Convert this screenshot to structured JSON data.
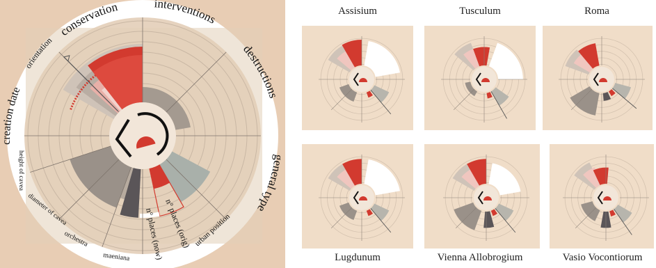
{
  "main_glyph": {
    "outer_labels": {
      "conservation": "conservation",
      "interventions": "interventions",
      "destructions": "destructions",
      "general_type": "general type",
      "creation_date": "creation date",
      "orientation": "orientation"
    },
    "inner_labels": {
      "height_of_cavea": "height of cavea",
      "diameter_of_cavea": "diameter of cavea",
      "orchestra": "orchestra",
      "maeniana": "maeniana",
      "places_now": "n° places (now)",
      "places_orig": "n° places (orig)",
      "urban_position": "urban position"
    }
  },
  "thumbnails": [
    {
      "title": "Assisium"
    },
    {
      "title": "Tusculum"
    },
    {
      "title": "Roma"
    },
    {
      "title": "Lugdunum"
    },
    {
      "title": "Vienna Allobrogium"
    },
    {
      "title": "Vasio Vocontiorum"
    }
  ],
  "colors": {
    "background": "#e8cdb4",
    "panel": "#f0ddc8",
    "ring": "#ffffff",
    "red": "#d23a2f",
    "grey": "#9a9189",
    "dark": "#5a5558",
    "center": "#f2e6d9"
  }
}
